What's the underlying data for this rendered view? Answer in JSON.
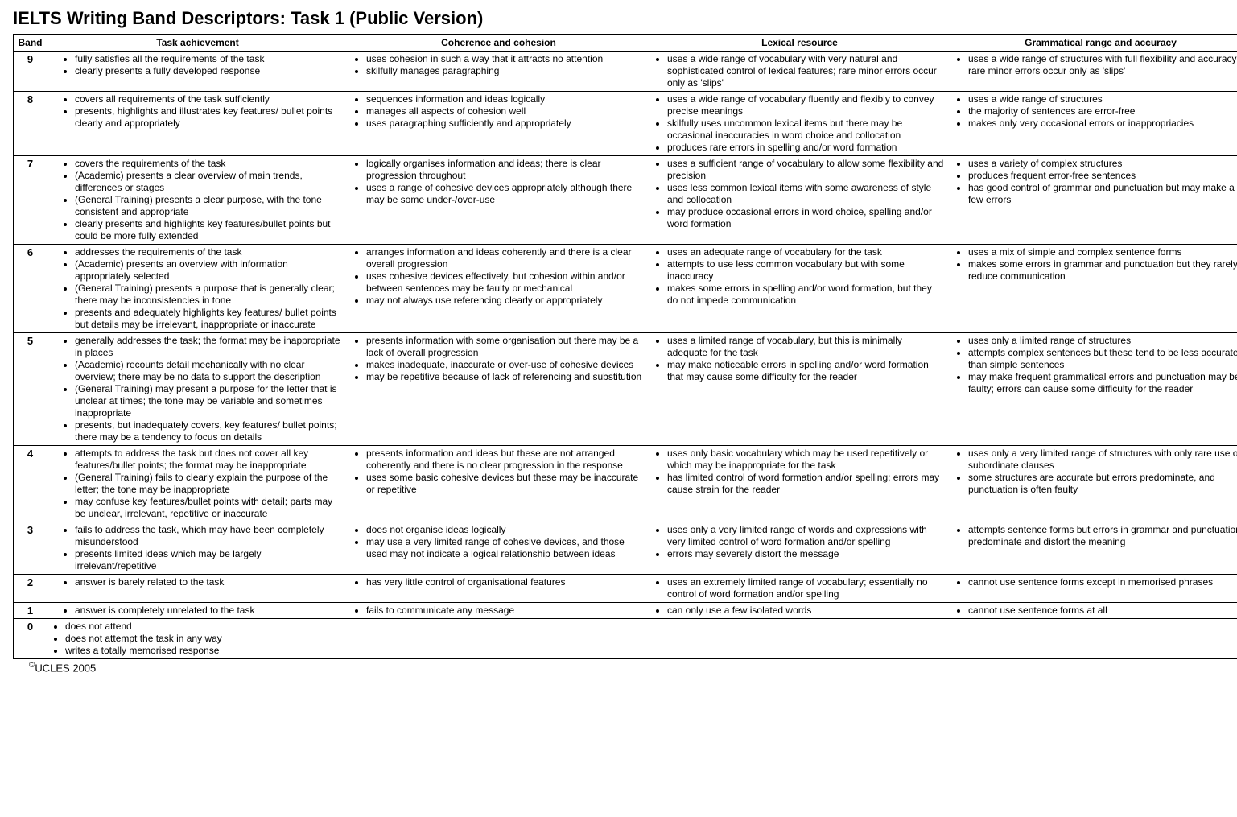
{
  "title": "IELTS Writing Band Descriptors: Task 1 (Public Version)",
  "copyright": "UCLES 2005",
  "columns": {
    "band": "Band",
    "c1": "Task achievement",
    "c2": "Coherence and cohesion",
    "c3": "Lexical resource",
    "c4": "Grammatical range and accuracy"
  },
  "rows": [
    {
      "band": "9",
      "c1": [
        "fully satisfies all the requirements of the task",
        "clearly presents a fully developed response"
      ],
      "c2": [
        "uses cohesion in such a way that it attracts no attention",
        "skilfully manages paragraphing"
      ],
      "c3": [
        "uses a wide range of vocabulary with very natural and sophisticated control of lexical features; rare minor errors occur only as 'slips'"
      ],
      "c4": [
        "uses a wide range of structures with full flexibility and accuracy; rare minor errors occur only as 'slips'"
      ]
    },
    {
      "band": "8",
      "c1": [
        "covers all requirements of the task sufficiently",
        "presents, highlights and illustrates key features/ bullet points clearly and appropriately"
      ],
      "c2": [
        "sequences information and ideas logically",
        "manages all aspects of cohesion well",
        "uses paragraphing sufficiently and appropriately"
      ],
      "c3": [
        "uses a wide range of vocabulary fluently and flexibly to convey precise meanings",
        "skilfully uses uncommon lexical items but there may be occasional inaccuracies in word choice and collocation",
        "produces rare errors in spelling and/or word formation"
      ],
      "c4": [
        "uses a wide range of structures",
        "the majority of sentences are error-free",
        "makes only very occasional errors or inappropriacies"
      ]
    },
    {
      "band": "7",
      "c1": [
        "covers the requirements of the task",
        "(Academic) presents a clear overview  of main trends, differences or stages",
        "(General Training) presents a clear purpose, with the tone consistent and appropriate",
        "clearly presents and highlights key features/bullet points but could be more fully extended"
      ],
      "c2": [
        "logically organises information and ideas; there is clear progression throughout",
        "uses a range of cohesive devices appropriately although there may be some under-/over-use"
      ],
      "c3": [
        "uses a sufficient range of vocabulary to allow some flexibility and precision",
        "uses less common lexical items with some awareness of style and collocation",
        "may produce occasional errors in  word choice, spelling and/or word formation"
      ],
      "c4": [
        "uses a variety of complex structures",
        "produces frequent error-free sentences",
        "has good control of grammar and punctuation but may make a few errors"
      ]
    },
    {
      "band": "6",
      "c1": [
        "addresses the requirements of the task",
        "(Academic) presents an overview with information appropriately selected",
        "(General Training) presents a purpose that is generally clear; there may be inconsistencies in tone",
        "presents and adequately highlights key features/ bullet points but details may be irrelevant, inappropriate or inaccurate"
      ],
      "c2": [
        "arranges information and ideas coherently and there is a clear overall progression",
        "uses cohesive devices effectively, but cohesion within and/or between sentences may be faulty or mechanical",
        "may not always use referencing clearly or appropriately"
      ],
      "c3": [
        "uses an adequate range of vocabulary for the task",
        "attempts to use less common vocabulary but with some inaccuracy",
        "makes some errors in spelling and/or word formation, but they do not impede communication"
      ],
      "c4": [
        "uses a mix of simple and complex sentence forms",
        "makes some errors in grammar and punctuation but they rarely reduce communication"
      ]
    },
    {
      "band": "5",
      "c1": [
        "generally addresses the task; the format may be inappropriate in places",
        "(Academic) recounts detail mechanically with no clear overview; there may be no data to support the description",
        "(General Training) may present a purpose for the letter that is unclear at times; the tone may be variable and sometimes inappropriate",
        "presents, but inadequately covers, key features/ bullet points; there may be a tendency to focus on details"
      ],
      "c2": [
        "presents information with some organisation but there may be a lack of overall progression",
        "makes inadequate, inaccurate or over-use of cohesive devices",
        "may be repetitive because of lack of referencing and substitution"
      ],
      "c3": [
        "uses a limited range of vocabulary, but this is minimally adequate for the task",
        "may make noticeable errors in spelling and/or word formation that may cause some difficulty for the reader"
      ],
      "c4": [
        "uses only a limited range of structures",
        "attempts complex sentences but these tend to be less accurate than simple sentences",
        "may make frequent grammatical errors and punctuation may be faulty; errors can cause some difficulty for the reader"
      ]
    },
    {
      "band": "4",
      "c1": [
        "attempts to address the task but does not cover all key features/bullet points; the format may be inappropriate",
        "(General Training) fails to clearly explain the purpose of the letter; the tone may be inappropriate",
        "may confuse key features/bullet points with detail; parts may be unclear, irrelevant, repetitive or inaccurate"
      ],
      "c2": [
        "presents information and ideas but these are not arranged coherently and there is no clear progression in the response",
        "uses some basic cohesive devices but these may be inaccurate or repetitive"
      ],
      "c3": [
        "uses only basic vocabulary which may be used repetitively or which may be inappropriate for the task",
        "has limited control of word formation and/or spelling; errors may cause strain for the reader"
      ],
      "c4": [
        "uses only a very limited range of structures with only rare use of subordinate clauses",
        "some structures are accurate but errors predominate, and punctuation is often faulty"
      ]
    },
    {
      "band": "3",
      "c1": [
        "fails to address the task, which may have been completely misunderstood",
        "presents limited ideas which may be largely irrelevant/repetitive"
      ],
      "c2": [
        "does not organise ideas logically",
        "may use a very limited range of cohesive devices, and those used may not indicate a logical relationship between ideas"
      ],
      "c3": [
        "uses only a very limited range of words and expressions with very limited control of word formation and/or spelling",
        "errors may severely distort the message"
      ],
      "c4": [
        "attempts sentence forms but errors in grammar and punctuation predominate and distort the meaning"
      ]
    },
    {
      "band": "2",
      "c1": [
        "answer is barely related to the task"
      ],
      "c2": [
        "has very little control of organisational features"
      ],
      "c3": [
        "uses an extremely limited range of vocabulary; essentially no control of word formation and/or spelling"
      ],
      "c4": [
        "cannot use sentence forms except in memorised phrases"
      ]
    },
    {
      "band": "1",
      "c1": [
        "answer is completely unrelated to the task"
      ],
      "c2": [
        "fails to communicate any message"
      ],
      "c3": [
        "can only use a few isolated words"
      ],
      "c4": [
        "cannot use sentence forms at all"
      ]
    },
    {
      "band": "0",
      "c1": [
        "does not attend",
        "does not attempt the task in any way",
        "writes a totally memorised response"
      ],
      "span": true
    }
  ]
}
